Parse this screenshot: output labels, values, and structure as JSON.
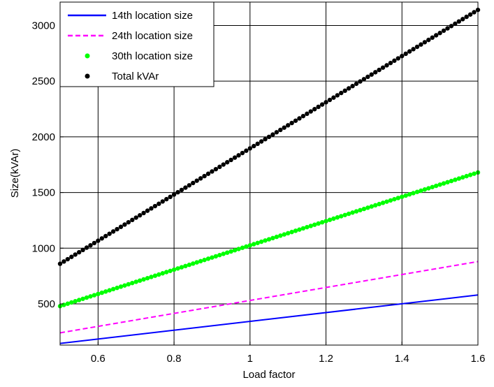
{
  "chart_data": {
    "type": "line",
    "title": "",
    "xlabel": "Load factor",
    "ylabel": "Size(kVAr)",
    "xlim": [
      0.5,
      1.6
    ],
    "ylim": [
      130,
      3210
    ],
    "xticks": [
      0.6,
      0.8,
      1,
      1.2,
      1.4,
      1.6
    ],
    "xtick_labels": [
      "0.6",
      "0.8",
      "1",
      "1.2",
      "1.4",
      "1.6"
    ],
    "yticks": [
      500,
      1000,
      1500,
      2000,
      2500,
      3000
    ],
    "ytick_labels": [
      "500",
      "1000",
      "1500",
      "2000",
      "2500",
      "3000"
    ],
    "grid": true,
    "legend_position": "top-left",
    "x": {
      "start": 0.5,
      "end": 1.6,
      "points": 111
    },
    "series": [
      {
        "name": "14th location size",
        "style": "solid",
        "marker": "none",
        "color": "#0000ff",
        "start": 145,
        "end": 580
      },
      {
        "name": "24th location size",
        "style": "dashed",
        "marker": "none",
        "color": "#ff00ff",
        "start": 240,
        "end": 880
      },
      {
        "name": "30th location size",
        "style": "none",
        "marker": "dot",
        "color": "#00ff00",
        "start": 480,
        "end": 1680
      },
      {
        "name": "Total kVAr",
        "style": "none",
        "marker": "dot",
        "color": "#000000",
        "start": 860,
        "end": 3140
      }
    ]
  }
}
